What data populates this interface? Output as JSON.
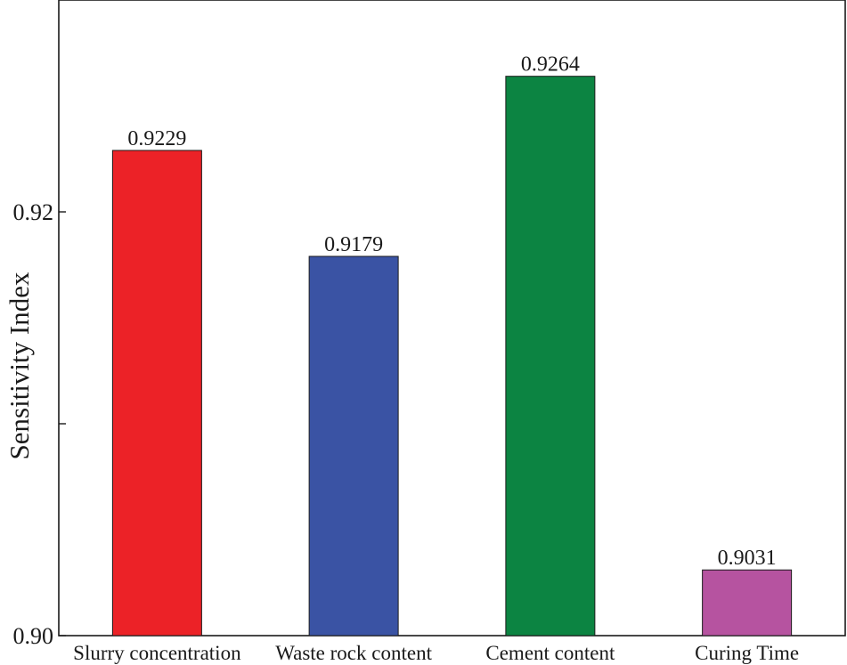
{
  "chart_data": {
    "type": "bar",
    "title": "",
    "xlabel": "",
    "ylabel": "Sensitivity Index",
    "ylim": [
      0.9,
      0.93
    ],
    "yticks": [
      {
        "value": 0.9,
        "label": "0.90"
      },
      {
        "value": 0.91,
        "label": ""
      },
      {
        "value": 0.92,
        "label": "0.92"
      }
    ],
    "categories": [
      "Slurry concentration",
      "Waste rock content",
      "Cement content",
      "Curing Time"
    ],
    "values": [
      0.9229,
      0.9179,
      0.9264,
      0.9031
    ],
    "value_labels": [
      "0.9229",
      "0.9179",
      "0.9264",
      "0.9031"
    ],
    "colors": [
      "#ec2227",
      "#3a53a4",
      "#0c8442",
      "#b653a0"
    ],
    "grid": false,
    "legend": "none"
  }
}
